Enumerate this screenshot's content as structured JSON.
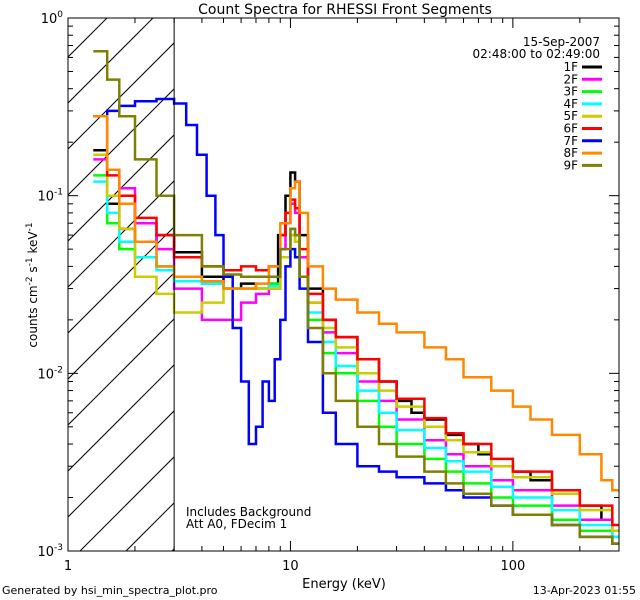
{
  "chart_data": {
    "type": "line",
    "title": "Count Spectra for RHESSI Front Segments",
    "xlabel": "Energy (keV)",
    "ylabel_main": "counts cm",
    "ylabel_sup1": "-2",
    "ylabel_mid": " s",
    "ylabel_sup2": "-1",
    "ylabel_end": " keV",
    "ylabel_sup3": "-1",
    "x_scale": "log",
    "y_scale": "log",
    "xlim": [
      1,
      300
    ],
    "ylim": [
      0.001,
      1
    ],
    "x_ticks": [
      {
        "value": 1,
        "label": "1"
      },
      {
        "value": 10,
        "label": "10"
      },
      {
        "value": 100,
        "label": "100"
      }
    ],
    "y_ticks": [
      {
        "value": 0.001,
        "base": "10",
        "exp": "-3"
      },
      {
        "value": 0.01,
        "base": "10",
        "exp": "-2"
      },
      {
        "value": 0.1,
        "base": "10",
        "exp": "-1"
      },
      {
        "value": 1,
        "base": "10",
        "exp": "0"
      }
    ],
    "attenuator_energy": 3,
    "date": "15-Sep-2007",
    "time_range": "02:48:00 to 02:49:00",
    "annotation_lines": [
      "Includes Background",
      "Att A0, FDecim 1"
    ],
    "legend_position": "top-right",
    "footer_left": "Generated by hsi_min_spectra_plot.pro",
    "footer_right": "13-Apr-2023 01:55",
    "series": [
      {
        "name": "1F",
        "color": "#000000",
        "points": [
          [
            1.3,
            0.18
          ],
          [
            1.5,
            0.09
          ],
          [
            1.7,
            0.065
          ],
          [
            2,
            0.055
          ],
          [
            2.5,
            0.06
          ],
          [
            3,
            0.048
          ],
          [
            4,
            0.035
          ],
          [
            5,
            0.03
          ],
          [
            6,
            0.032
          ],
          [
            7,
            0.03
          ],
          [
            8,
            0.032
          ],
          [
            8.8,
            0.06
          ],
          [
            9.5,
            0.1
          ],
          [
            10,
            0.135
          ],
          [
            10.5,
            0.12
          ],
          [
            11,
            0.06
          ],
          [
            12,
            0.03
          ],
          [
            14,
            0.02
          ],
          [
            16,
            0.016
          ],
          [
            20,
            0.012
          ],
          [
            25,
            0.009
          ],
          [
            30,
            0.007
          ],
          [
            35,
            0.006
          ],
          [
            40,
            0.0055
          ],
          [
            50,
            0.0045
          ],
          [
            60,
            0.004
          ],
          [
            70,
            0.0035
          ],
          [
            80,
            0.003
          ],
          [
            100,
            0.0028
          ],
          [
            120,
            0.0025
          ],
          [
            150,
            0.0022
          ],
          [
            200,
            0.0018
          ],
          [
            250,
            0.0015
          ],
          [
            280,
            0.0013
          ]
        ]
      },
      {
        "name": "2F",
        "color": "#ff00ff",
        "points": [
          [
            1.3,
            0.16
          ],
          [
            1.5,
            0.14
          ],
          [
            1.7,
            0.11
          ],
          [
            2,
            0.07
          ],
          [
            2.5,
            0.05
          ],
          [
            3,
            0.03
          ],
          [
            4,
            0.02
          ],
          [
            5,
            0.02
          ],
          [
            6,
            0.025
          ],
          [
            7,
            0.028
          ],
          [
            8,
            0.03
          ],
          [
            9,
            0.05
          ],
          [
            9.5,
            0.07
          ],
          [
            10,
            0.09
          ],
          [
            10.5,
            0.08
          ],
          [
            11,
            0.045
          ],
          [
            12,
            0.025
          ],
          [
            14,
            0.017
          ],
          [
            16,
            0.013
          ],
          [
            20,
            0.009
          ],
          [
            25,
            0.007
          ],
          [
            30,
            0.0055
          ],
          [
            40,
            0.0042
          ],
          [
            50,
            0.0035
          ],
          [
            60,
            0.003
          ],
          [
            80,
            0.0025
          ],
          [
            100,
            0.0022
          ],
          [
            150,
            0.0018
          ],
          [
            200,
            0.0015
          ],
          [
            280,
            0.0012
          ]
        ]
      },
      {
        "name": "3F",
        "color": "#00ff00",
        "points": [
          [
            1.3,
            0.13
          ],
          [
            1.5,
            0.07
          ],
          [
            1.7,
            0.05
          ],
          [
            2,
            0.045
          ],
          [
            2.5,
            0.04
          ],
          [
            3,
            0.035
          ],
          [
            4,
            0.032
          ],
          [
            5,
            0.03
          ],
          [
            6,
            0.03
          ],
          [
            7,
            0.03
          ],
          [
            8,
            0.032
          ],
          [
            9,
            0.045
          ],
          [
            10,
            0.06
          ],
          [
            10.5,
            0.055
          ],
          [
            11,
            0.035
          ],
          [
            12,
            0.02
          ],
          [
            14,
            0.013
          ],
          [
            16,
            0.01
          ],
          [
            20,
            0.007
          ],
          [
            25,
            0.005
          ],
          [
            30,
            0.004
          ],
          [
            40,
            0.0033
          ],
          [
            50,
            0.0028
          ],
          [
            60,
            0.0024
          ],
          [
            80,
            0.002
          ],
          [
            100,
            0.0018
          ],
          [
            150,
            0.0015
          ],
          [
            200,
            0.0013
          ],
          [
            280,
            0.0011
          ]
        ]
      },
      {
        "name": "4F",
        "color": "#00ffff",
        "points": [
          [
            1.3,
            0.12
          ],
          [
            1.5,
            0.08
          ],
          [
            1.7,
            0.055
          ],
          [
            2,
            0.045
          ],
          [
            2.5,
            0.038
          ],
          [
            3,
            0.033
          ],
          [
            4,
            0.032
          ],
          [
            5,
            0.03
          ],
          [
            6,
            0.03
          ],
          [
            7,
            0.03
          ],
          [
            8,
            0.031
          ],
          [
            9,
            0.045
          ],
          [
            10,
            0.065
          ],
          [
            10.5,
            0.06
          ],
          [
            11,
            0.035
          ],
          [
            12,
            0.022
          ],
          [
            14,
            0.015
          ],
          [
            16,
            0.011
          ],
          [
            20,
            0.008
          ],
          [
            25,
            0.006
          ],
          [
            30,
            0.0048
          ],
          [
            40,
            0.0038
          ],
          [
            50,
            0.0032
          ],
          [
            60,
            0.0028
          ],
          [
            80,
            0.0023
          ],
          [
            100,
            0.002
          ],
          [
            150,
            0.0017
          ],
          [
            200,
            0.0014
          ],
          [
            280,
            0.0012
          ]
        ]
      },
      {
        "name": "5F",
        "color": "#cccc00",
        "points": [
          [
            1.3,
            0.17
          ],
          [
            1.5,
            0.1
          ],
          [
            1.7,
            0.065
          ],
          [
            2,
            0.035
          ],
          [
            2.5,
            0.028
          ],
          [
            3,
            0.022
          ],
          [
            4,
            0.025
          ],
          [
            5,
            0.03
          ],
          [
            6,
            0.03
          ],
          [
            7,
            0.03
          ],
          [
            8,
            0.03
          ],
          [
            9,
            0.045
          ],
          [
            10,
            0.06
          ],
          [
            10.5,
            0.055
          ],
          [
            11,
            0.035
          ],
          [
            12,
            0.025
          ],
          [
            14,
            0.018
          ],
          [
            16,
            0.014
          ],
          [
            20,
            0.01
          ],
          [
            25,
            0.008
          ],
          [
            30,
            0.0065
          ],
          [
            40,
            0.005
          ],
          [
            50,
            0.0042
          ],
          [
            60,
            0.0036
          ],
          [
            80,
            0.003
          ],
          [
            100,
            0.0026
          ],
          [
            150,
            0.0021
          ],
          [
            200,
            0.0017
          ],
          [
            280,
            0.0013
          ]
        ]
      },
      {
        "name": "6F",
        "color": "#ff0000",
        "points": [
          [
            1.3,
            0.28
          ],
          [
            1.5,
            0.13
          ],
          [
            1.7,
            0.1
          ],
          [
            2,
            0.075
          ],
          [
            2.5,
            0.06
          ],
          [
            3,
            0.045
          ],
          [
            4,
            0.04
          ],
          [
            5,
            0.038
          ],
          [
            6,
            0.04
          ],
          [
            7,
            0.038
          ],
          [
            8,
            0.04
          ],
          [
            9,
            0.06
          ],
          [
            9.5,
            0.08
          ],
          [
            10,
            0.095
          ],
          [
            10.5,
            0.085
          ],
          [
            11,
            0.05
          ],
          [
            12,
            0.028
          ],
          [
            14,
            0.02
          ],
          [
            16,
            0.016
          ],
          [
            20,
            0.012
          ],
          [
            25,
            0.009
          ],
          [
            30,
            0.0072
          ],
          [
            40,
            0.0056
          ],
          [
            50,
            0.0046
          ],
          [
            60,
            0.004
          ],
          [
            80,
            0.0033
          ],
          [
            100,
            0.0028
          ],
          [
            150,
            0.0022
          ],
          [
            200,
            0.0018
          ],
          [
            280,
            0.0014
          ]
        ]
      },
      {
        "name": "7F",
        "color": "#0000ff",
        "points": [
          [
            1.3,
            0.28
          ],
          [
            1.5,
            0.3
          ],
          [
            1.7,
            0.32
          ],
          [
            2,
            0.34
          ],
          [
            2.5,
            0.35
          ],
          [
            3,
            0.33
          ],
          [
            3.4,
            0.25
          ],
          [
            3.8,
            0.17
          ],
          [
            4.2,
            0.1
          ],
          [
            4.6,
            0.06
          ],
          [
            5,
            0.035
          ],
          [
            5.5,
            0.018
          ],
          [
            6,
            0.009
          ],
          [
            6.5,
            0.004
          ],
          [
            7,
            0.005
          ],
          [
            7.5,
            0.009
          ],
          [
            8,
            0.007
          ],
          [
            8.5,
            0.012
          ],
          [
            9,
            0.02
          ],
          [
            9.5,
            0.04
          ],
          [
            10,
            0.05
          ],
          [
            10.5,
            0.045
          ],
          [
            11,
            0.03
          ],
          [
            12,
            0.015
          ],
          [
            14,
            0.006
          ],
          [
            16,
            0.004
          ],
          [
            20,
            0.003
          ],
          [
            25,
            0.0028
          ],
          [
            30,
            0.0026
          ],
          [
            40,
            0.0024
          ],
          [
            50,
            0.0022
          ],
          [
            60,
            0.002
          ],
          [
            80,
            0.0018
          ],
          [
            100,
            0.0016
          ],
          [
            150,
            0.0014
          ],
          [
            200,
            0.0012
          ],
          [
            280,
            0.0011
          ]
        ]
      },
      {
        "name": "8F",
        "color": "#ff8800",
        "points": [
          [
            1.3,
            0.28
          ],
          [
            1.5,
            0.14
          ],
          [
            1.7,
            0.09
          ],
          [
            2,
            0.055
          ],
          [
            2.5,
            0.04
          ],
          [
            3,
            0.035
          ],
          [
            4,
            0.033
          ],
          [
            5,
            0.03
          ],
          [
            6,
            0.03
          ],
          [
            7,
            0.032
          ],
          [
            8,
            0.04
          ],
          [
            9,
            0.07
          ],
          [
            10,
            0.11
          ],
          [
            10.5,
            0.12
          ],
          [
            11,
            0.08
          ],
          [
            12,
            0.04
          ],
          [
            14,
            0.03
          ],
          [
            16,
            0.026
          ],
          [
            20,
            0.022
          ],
          [
            25,
            0.019
          ],
          [
            30,
            0.017
          ],
          [
            40,
            0.014
          ],
          [
            50,
            0.012
          ],
          [
            60,
            0.0095
          ],
          [
            80,
            0.008
          ],
          [
            100,
            0.0065
          ],
          [
            120,
            0.0055
          ],
          [
            150,
            0.0045
          ],
          [
            200,
            0.0035
          ],
          [
            250,
            0.0025
          ],
          [
            280,
            0.0022
          ]
        ]
      },
      {
        "name": "9F",
        "color": "#808000",
        "points": [
          [
            1.3,
            0.65
          ],
          [
            1.5,
            0.45
          ],
          [
            1.7,
            0.28
          ],
          [
            2,
            0.16
          ],
          [
            2.5,
            0.1
          ],
          [
            3,
            0.06
          ],
          [
            4,
            0.04
          ],
          [
            5,
            0.036
          ],
          [
            6,
            0.035
          ],
          [
            7,
            0.035
          ],
          [
            8,
            0.035
          ],
          [
            9,
            0.05
          ],
          [
            10,
            0.065
          ],
          [
            10.5,
            0.06
          ],
          [
            11,
            0.035
          ],
          [
            12,
            0.018
          ],
          [
            14,
            0.01
          ],
          [
            16,
            0.007
          ],
          [
            20,
            0.005
          ],
          [
            25,
            0.004
          ],
          [
            30,
            0.0034
          ],
          [
            40,
            0.0028
          ],
          [
            50,
            0.0024
          ],
          [
            60,
            0.0021
          ],
          [
            80,
            0.0018
          ],
          [
            100,
            0.0016
          ],
          [
            150,
            0.0014
          ],
          [
            200,
            0.0012
          ],
          [
            280,
            0.0011
          ]
        ]
      }
    ]
  }
}
